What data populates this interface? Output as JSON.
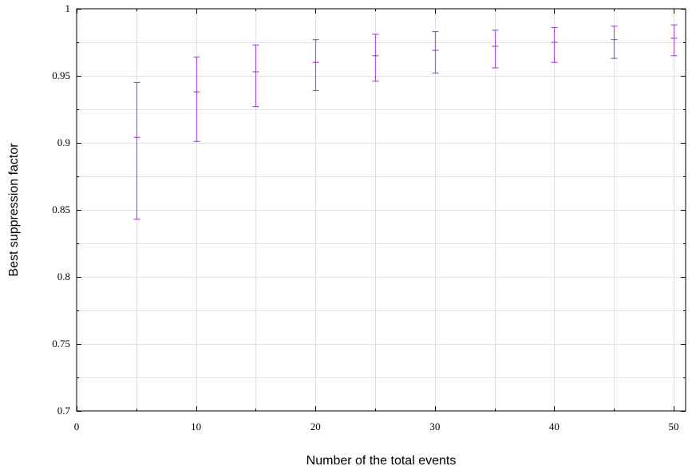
{
  "chart_data": {
    "type": "scatter",
    "title": "",
    "xlabel": "Number of the total events",
    "ylabel": "Best suppression factor",
    "xlim": [
      0,
      51
    ],
    "ylim": [
      0.7,
      1
    ],
    "x_ticks": [
      0,
      10,
      20,
      30,
      40,
      50
    ],
    "y_ticks": [
      0.7,
      0.75,
      0.8,
      0.85,
      0.9,
      0.95,
      1
    ],
    "y_tick_labels": [
      "0.7",
      "0.75",
      "0.8",
      "0.85",
      "0.9",
      "0.95",
      "1"
    ],
    "x_minor_grid": [
      5,
      15,
      25,
      35,
      45
    ],
    "y_minor_grid": [
      0.725,
      0.775,
      0.825,
      0.875,
      0.925,
      0.975
    ],
    "grid": true,
    "error_bars": true,
    "series": [
      {
        "color": "#a64ee0",
        "points": [
          {
            "x": 5,
            "y": 0.904,
            "low": 0.843,
            "high": 0.945
          },
          {
            "x": 10,
            "y": 0.938,
            "low": 0.901,
            "high": 0.964
          },
          {
            "x": 15,
            "y": 0.953,
            "low": 0.927,
            "high": 0.973
          },
          {
            "x": 20,
            "y": 0.96,
            "low": 0.939,
            "high": 0.977
          },
          {
            "x": 25,
            "y": 0.965,
            "low": 0.946,
            "high": 0.981
          },
          {
            "x": 30,
            "y": 0.969,
            "low": 0.952,
            "high": 0.983
          },
          {
            "x": 35,
            "y": 0.972,
            "low": 0.956,
            "high": 0.984
          },
          {
            "x": 40,
            "y": 0.975,
            "low": 0.96,
            "high": 0.986
          },
          {
            "x": 45,
            "y": 0.977,
            "low": 0.963,
            "high": 0.987
          },
          {
            "x": 50,
            "y": 0.978,
            "low": 0.965,
            "high": 0.988
          }
        ]
      }
    ]
  }
}
